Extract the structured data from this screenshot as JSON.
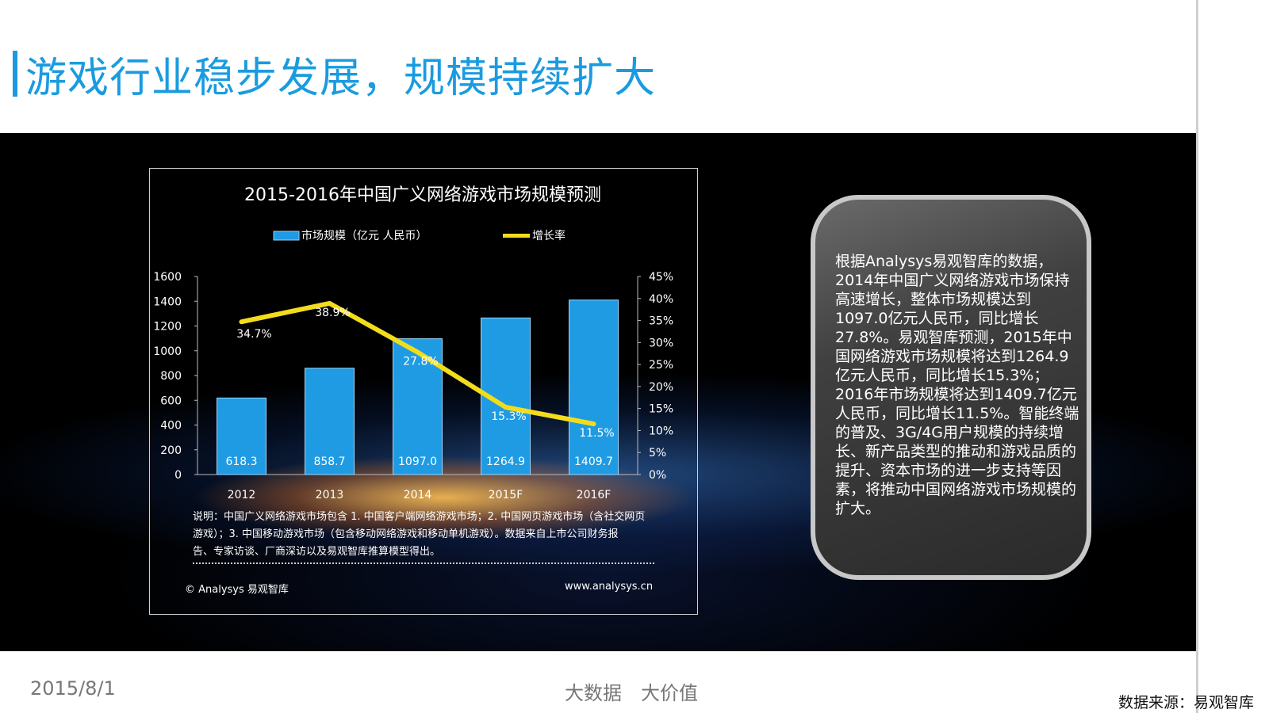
{
  "page_title": "游戏行业稳步发展，规模持续扩大",
  "chart_data": {
    "type": "bar",
    "title": "2015-2016年中国广义网络游戏市场规模预测",
    "categories": [
      "2012",
      "2013",
      "2014",
      "2015F",
      "2016F"
    ],
    "series": [
      {
        "name": "市场规模（亿元 人民币）",
        "type": "bar",
        "axis": "left",
        "values": [
          618.3,
          858.7,
          1097.0,
          1264.9,
          1409.7
        ],
        "labels": [
          "618.3",
          "858.7",
          "1097.0",
          "1264.9",
          "1409.7"
        ],
        "color": "#1f9be3"
      },
      {
        "name": "增长率",
        "type": "line",
        "axis": "right",
        "values": [
          34.7,
          38.9,
          27.8,
          15.3,
          11.5
        ],
        "labels": [
          "34.7%",
          "38.9%",
          "27.8%",
          "15.3%",
          "11.5%"
        ],
        "color": "#f3dc1b"
      }
    ],
    "y_left": {
      "min": 0,
      "max": 1600,
      "ticks": [
        "0",
        "200",
        "400",
        "600",
        "800",
        "1000",
        "1200",
        "1400",
        "1600"
      ]
    },
    "y_right": {
      "min": 0,
      "max": 45,
      "ticks": [
        "0%",
        "5%",
        "10%",
        "15%",
        "20%",
        "25%",
        "30%",
        "35%",
        "40%",
        "45%"
      ]
    },
    "legend_position": "top"
  },
  "chart_note": {
    "line1": "说明：中国广义网络游戏市场包含 1. 中国客户端网络游戏市场；2. 中国网页游戏市场（含社交网页",
    "line2": "游戏）；3. 中国移动游戏市场（包含移动网络游戏和移动单机游戏）。数据来自上市公司财务报",
    "line3": "告、专家访谈、厂商深访以及易观智库推算模型得出。"
  },
  "copyright": "© Analysys 易观智库",
  "website": "www.analysys.cn",
  "info_card_text": "根据Analysys易观智库的数据，2014年中国广义网络游戏市场保持高速增长，整体市场规模达到1097.0亿元人民币，同比增长27.8%。易观智库预测，2015年中国网络游戏市场规模将达到1264.9亿元人民币，同比增长15.3%；2016年市场规模将达到1409.7亿元人民币，同比增长11.5%。智能终端的普及、3G/4G用户规模的持续增长、新产品类型的推动和游戏品质的提升、资本市场的进一步支持等因素，将推动中国网络游戏市场规模的扩大。",
  "footer": {
    "date": "2015/8/1",
    "slogan": "大数据　大价值",
    "source": "数据来源：易观智库"
  }
}
